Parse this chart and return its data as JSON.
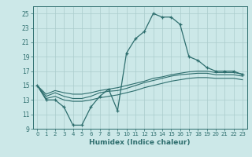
{
  "xlabel": "Humidex (Indice chaleur)",
  "background_color": "#cce8e8",
  "grid_color": "#aacccc",
  "line_color": "#2e6e6e",
  "xlim": [
    -0.5,
    23.5
  ],
  "ylim": [
    9,
    26
  ],
  "xticks": [
    0,
    1,
    2,
    3,
    4,
    5,
    6,
    7,
    8,
    9,
    10,
    11,
    12,
    13,
    14,
    15,
    16,
    17,
    18,
    19,
    20,
    21,
    22,
    23
  ],
  "yticks": [
    9,
    11,
    13,
    15,
    17,
    19,
    21,
    23,
    25
  ],
  "main_line_x": [
    0,
    1,
    2,
    3,
    4,
    5,
    6,
    7,
    8,
    9,
    10,
    11,
    12,
    13,
    14,
    15,
    16,
    17,
    18,
    19,
    20,
    21,
    22,
    23
  ],
  "main_line_y": [
    15,
    13,
    13,
    12,
    9.5,
    9.5,
    12,
    13.5,
    14.5,
    11.5,
    19.5,
    21.5,
    22.5,
    25,
    24.5,
    24.5,
    23.5,
    19,
    18.5,
    17.5,
    17,
    17,
    17,
    16.5
  ],
  "line2_x": [
    0,
    1,
    2,
    3,
    4,
    5,
    6,
    7,
    8,
    9,
    10,
    11,
    12,
    13,
    14,
    15,
    16,
    17,
    18,
    19,
    20,
    21,
    22,
    23
  ],
  "line2_y": [
    15,
    13.5,
    14,
    13.5,
    13.2,
    13.2,
    13.5,
    14,
    14.2,
    14.3,
    14.6,
    15.0,
    15.4,
    15.7,
    16.0,
    16.3,
    16.5,
    16.6,
    16.7,
    16.7,
    16.5,
    16.5,
    16.5,
    16.3
  ],
  "line3_x": [
    0,
    1,
    2,
    3,
    4,
    5,
    6,
    7,
    8,
    9,
    10,
    11,
    12,
    13,
    14,
    15,
    16,
    17,
    18,
    19,
    20,
    21,
    22,
    23
  ],
  "line3_y": [
    15,
    13.8,
    14.3,
    14.0,
    13.8,
    13.8,
    14.0,
    14.3,
    14.5,
    14.7,
    15.0,
    15.3,
    15.6,
    16.0,
    16.2,
    16.5,
    16.7,
    16.9,
    17.0,
    17.0,
    16.8,
    16.8,
    16.8,
    16.6
  ],
  "line4_x": [
    0,
    1,
    2,
    3,
    4,
    5,
    6,
    7,
    8,
    9,
    10,
    11,
    12,
    13,
    14,
    15,
    16,
    17,
    18,
    19,
    20,
    21,
    22,
    23
  ],
  "line4_y": [
    15,
    13.2,
    13.5,
    13.0,
    12.8,
    12.8,
    13.0,
    13.3,
    13.5,
    13.7,
    14.0,
    14.3,
    14.7,
    15.0,
    15.3,
    15.6,
    15.8,
    16.0,
    16.1,
    16.1,
    16.0,
    16.0,
    16.0,
    15.8
  ]
}
